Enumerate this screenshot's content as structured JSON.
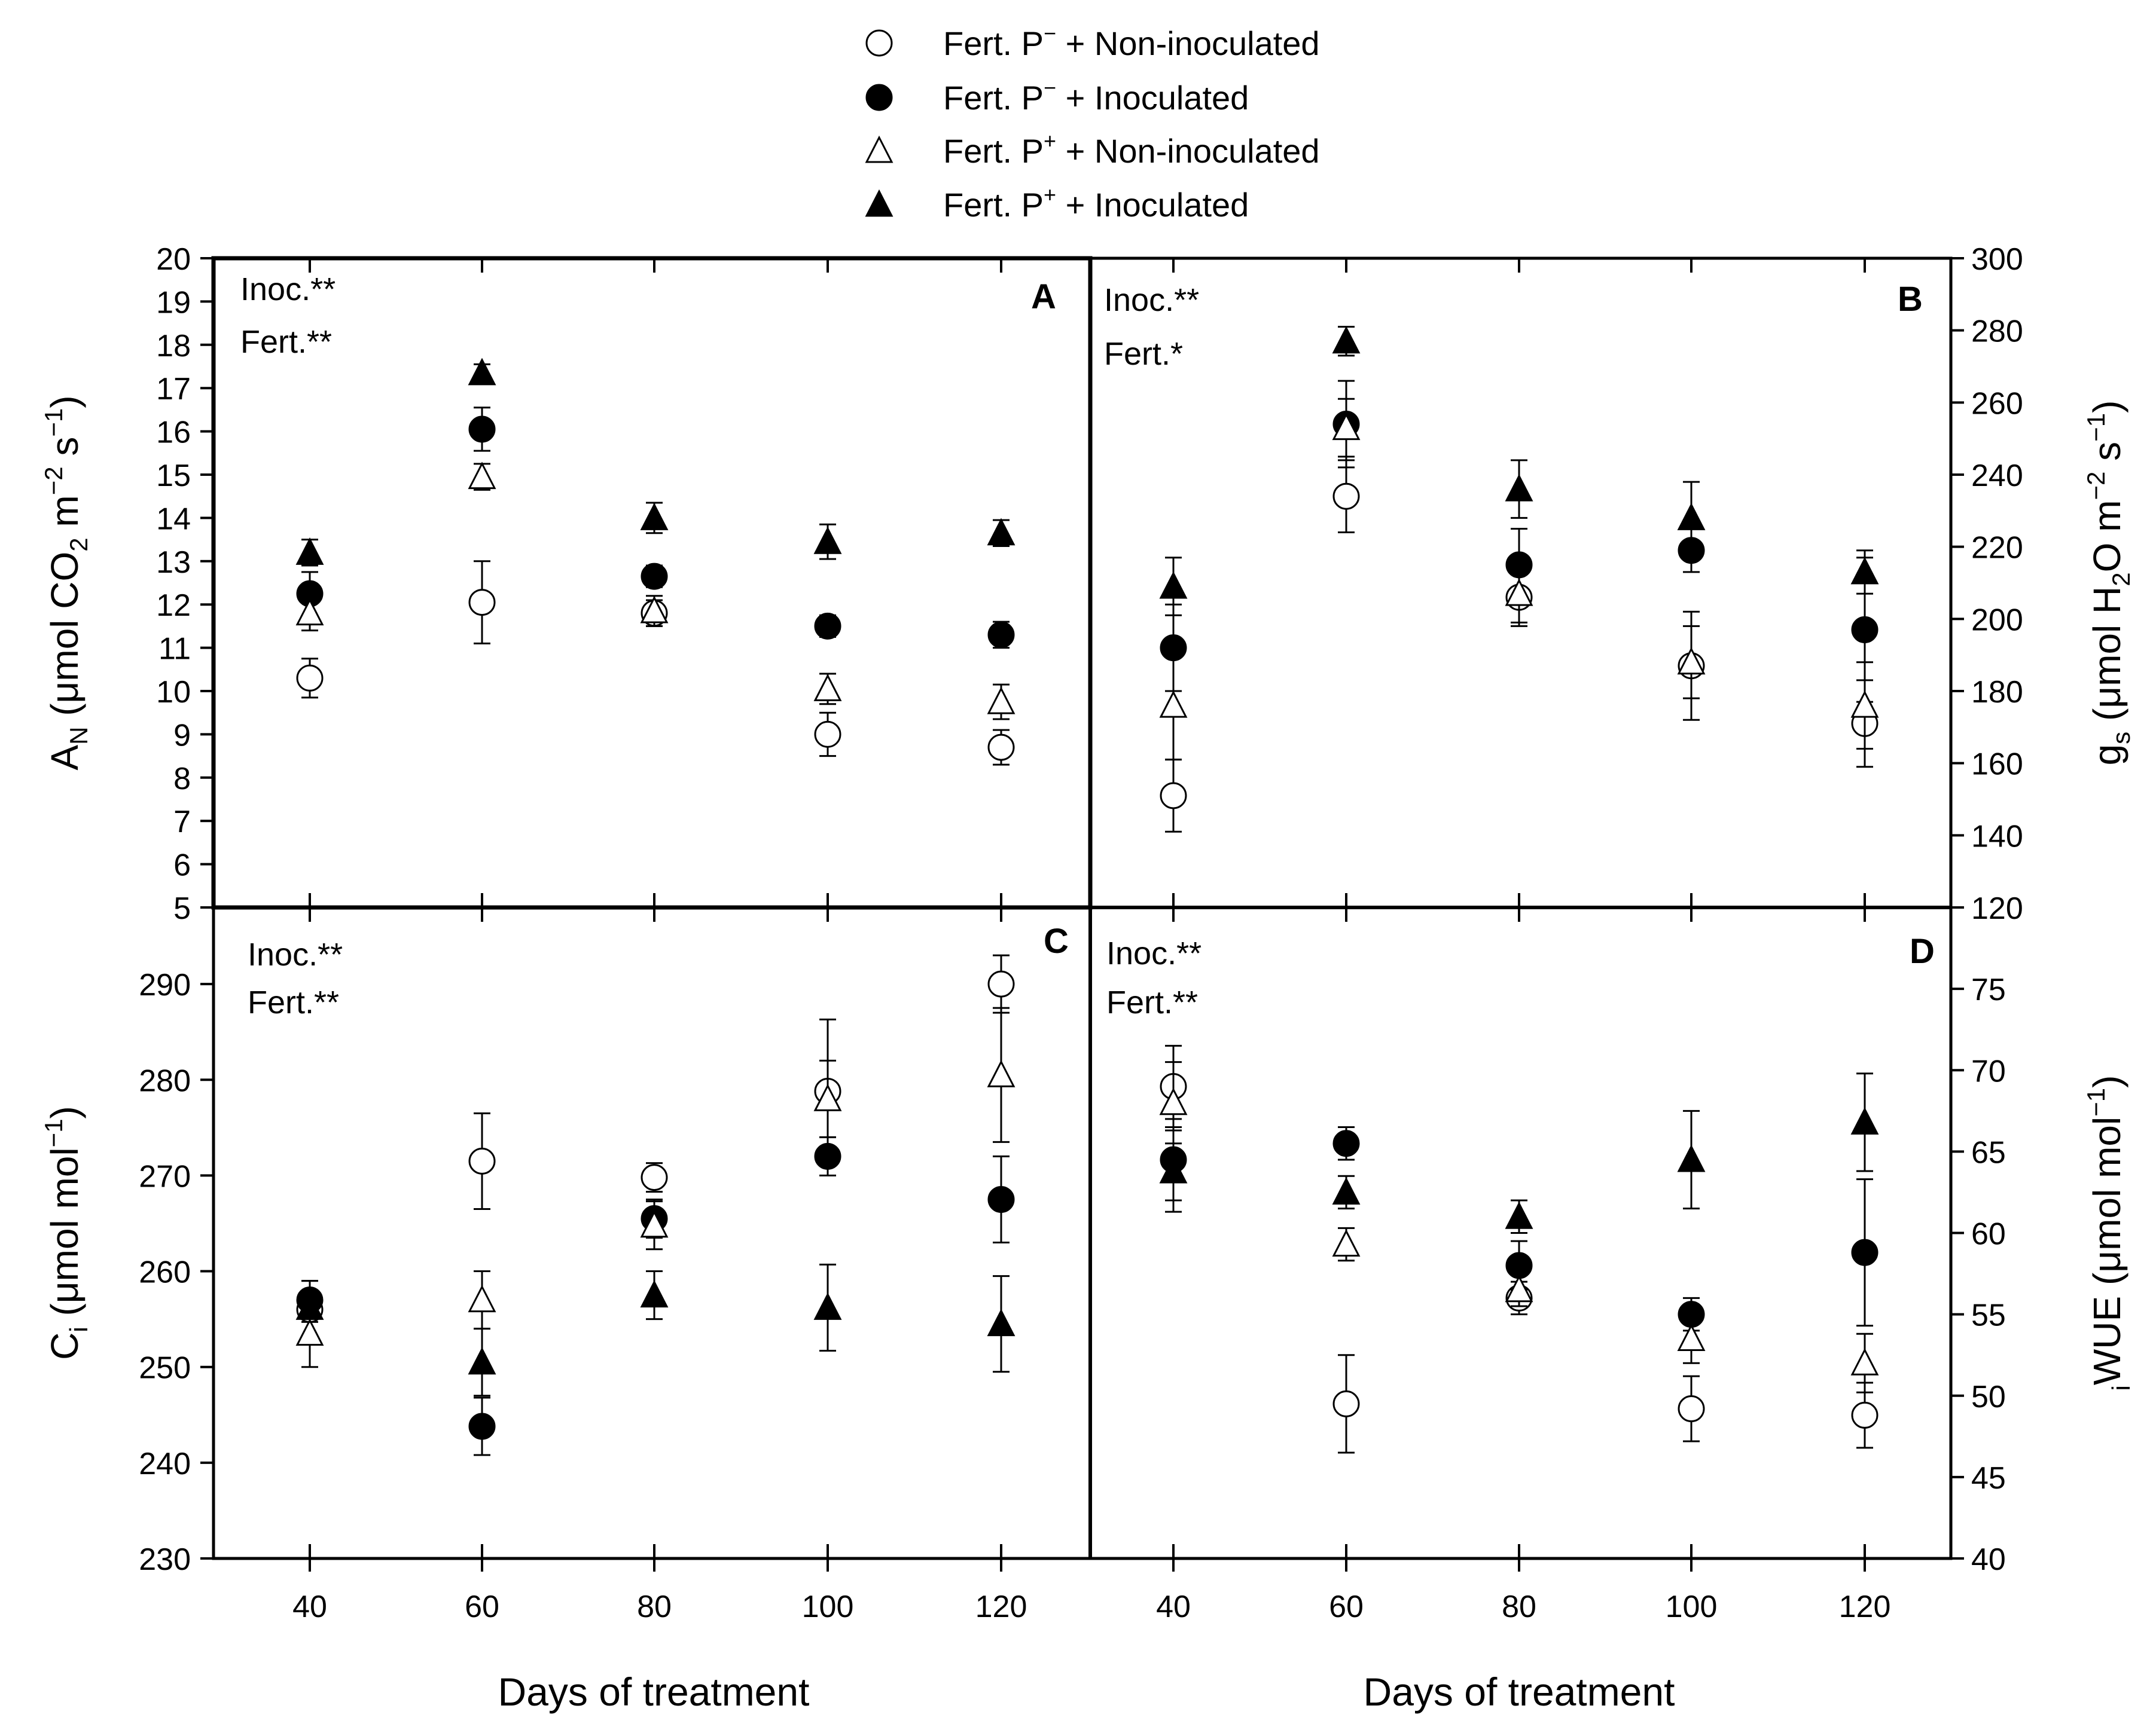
{
  "legend": [
    {
      "label_prefix": "Fert. P",
      "sup": "−",
      "label_suffix": " + Non-inoculated",
      "marker": "circle-open"
    },
    {
      "label_prefix": "Fert. P",
      "sup": "−",
      "label_suffix": " + Inoculated",
      "marker": "circle-filled"
    },
    {
      "label_prefix": "Fert. P",
      "sup": "+",
      "label_suffix": " + Non-inoculated",
      "marker": "triangle-open"
    },
    {
      "label_prefix": "Fert. P",
      "sup": "+",
      "label_suffix": " + Inoculated",
      "marker": "triangle-filled"
    }
  ],
  "x_axis_title": "Days of treatment",
  "chart_data": [
    {
      "type": "scatter",
      "panel": "A",
      "annotations": [
        "Inoc.**",
        "Fert.**"
      ],
      "ylabel_parts": {
        "main": "A",
        "sub": "N",
        "unit": "(μmol CO",
        "sub2": "2",
        "rest": " m",
        "sup1": "−2",
        "rest2": " s",
        "sup2": "−1",
        "close": ")"
      },
      "ylim": [
        5,
        20
      ],
      "yticks": [
        5,
        6,
        7,
        8,
        9,
        10,
        11,
        12,
        13,
        14,
        15,
        16,
        17,
        18,
        19,
        20
      ],
      "x": [
        40,
        60,
        80,
        100,
        120
      ],
      "series": [
        {
          "name": "Fert. P− + Non-inoculated",
          "values": [
            10.3,
            12.05,
            11.8,
            9.0,
            8.7
          ],
          "err": [
            0.45,
            0.95,
            0.3,
            0.5,
            0.4
          ]
        },
        {
          "name": "Fert. P− + Inoculated",
          "values": [
            12.25,
            16.05,
            12.65,
            11.5,
            11.3
          ],
          "err": [
            0.5,
            0.5,
            0.25,
            0.25,
            0.3
          ]
        },
        {
          "name": "Fert. P+ + Non-inoculated",
          "values": [
            11.8,
            14.95,
            11.85,
            10.05,
            9.75
          ],
          "err": [
            0.4,
            0.3,
            0.35,
            0.35,
            0.4
          ]
        },
        {
          "name": "Fert. P+ + Inoculated",
          "values": [
            13.2,
            17.35,
            14.0,
            13.45,
            13.65
          ],
          "err": [
            0.3,
            0.2,
            0.35,
            0.4,
            0.3
          ]
        }
      ]
    },
    {
      "type": "scatter",
      "panel": "B",
      "annotations": [
        "Inoc.**",
        "Fert.*"
      ],
      "ylabel_parts": {
        "main": "g",
        "sub": "s",
        "unit": "(μmol H",
        "sub2": "2",
        "rest": "O m",
        "sup1": "−2",
        "rest2": " s",
        "sup2": "−1",
        "close": ")"
      },
      "ylim": [
        120,
        300
      ],
      "yticks": [
        120,
        140,
        160,
        180,
        200,
        220,
        240,
        260,
        280,
        300
      ],
      "x": [
        40,
        60,
        80,
        100,
        120
      ],
      "series": [
        {
          "name": "Fert. P− + Non-inoculated",
          "values": [
            151,
            234,
            206,
            187,
            171
          ],
          "err": [
            10,
            10,
            8,
            15,
            12
          ]
        },
        {
          "name": "Fert. P− + Inoculated",
          "values": [
            192,
            254,
            215,
            219,
            197
          ],
          "err": [
            12,
            12,
            10,
            6,
            20
          ]
        },
        {
          "name": "Fert. P+ + Non-inoculated",
          "values": [
            176,
            253,
            207,
            188,
            176
          ],
          "err": [
            15,
            8,
            8,
            10,
            12
          ]
        },
        {
          "name": "Fert. P+ + Inoculated",
          "values": [
            209,
            277,
            236,
            228,
            213
          ],
          "err": [
            8,
            4,
            8,
            10,
            6
          ]
        }
      ]
    },
    {
      "type": "scatter",
      "panel": "C",
      "annotations": [
        "Inoc.**",
        "Fert.**"
      ],
      "ylabel_parts": {
        "main": "C",
        "sub": "i",
        "unit": "(μmol mol",
        "sup1": "−1",
        "close": ")"
      },
      "ylim": [
        230,
        298
      ],
      "yticks": [
        230,
        240,
        250,
        260,
        270,
        280,
        290
      ],
      "x": [
        40,
        60,
        80,
        100,
        120
      ],
      "series": [
        {
          "name": "Fert. P− + Non-inoculated",
          "values": [
            256,
            271.5,
            269.8,
            278.8,
            290
          ],
          "err": [
            3,
            5,
            1.5,
            7.5,
            3
          ]
        },
        {
          "name": "Fert. P− + Inoculated",
          "values": [
            257,
            243.8,
            265.5,
            272,
            267.5
          ],
          "err": [
            2,
            3,
            2,
            2,
            4.5
          ]
        },
        {
          "name": "Fert. P+ + Non-inoculated",
          "values": [
            253.5,
            257,
            264.8,
            278,
            280.5
          ],
          "err": [
            3.5,
            3,
            2.5,
            4,
            7
          ]
        },
        {
          "name": "Fert. P+ + Inoculated",
          "values": [
            256.2,
            250.5,
            257.5,
            256.2,
            254.5
          ],
          "err": [
            1.5,
            3.5,
            2.5,
            4.5,
            5
          ]
        }
      ]
    },
    {
      "type": "scatter",
      "panel": "D",
      "annotations": [
        "Inoc.**",
        "Fert.**"
      ],
      "ylabel_parts": {
        "pre": "i",
        "main": "WUE",
        "unit": "(μmol mol",
        "sup1": "−1",
        "close": ")"
      },
      "ylim": [
        40,
        80
      ],
      "yticks": [
        40,
        45,
        50,
        55,
        60,
        65,
        70,
        75
      ],
      "x": [
        40,
        60,
        80,
        100,
        120
      ],
      "series": [
        {
          "name": "Fert. P− + Non-inoculated",
          "values": [
            69,
            49.5,
            56,
            49.2,
            48.8
          ],
          "err": [
            2.5,
            3,
            1,
            2,
            2
          ]
        },
        {
          "name": "Fert. P− + Inoculated",
          "values": [
            64.5,
            65.5,
            58,
            55,
            58.8
          ],
          "err": [
            2.5,
            1,
            1.5,
            1,
            4.5
          ]
        },
        {
          "name": "Fert. P+ + Non-inoculated",
          "values": [
            68,
            59.3,
            56.5,
            53.5,
            52
          ],
          "err": [
            2.5,
            1,
            1,
            1.5,
            1.8
          ]
        },
        {
          "name": "Fert. P+ + Inoculated",
          "values": [
            63.8,
            62.5,
            61,
            64.5,
            66.8
          ],
          "err": [
            2.5,
            1,
            1,
            3,
            3
          ]
        }
      ]
    }
  ]
}
